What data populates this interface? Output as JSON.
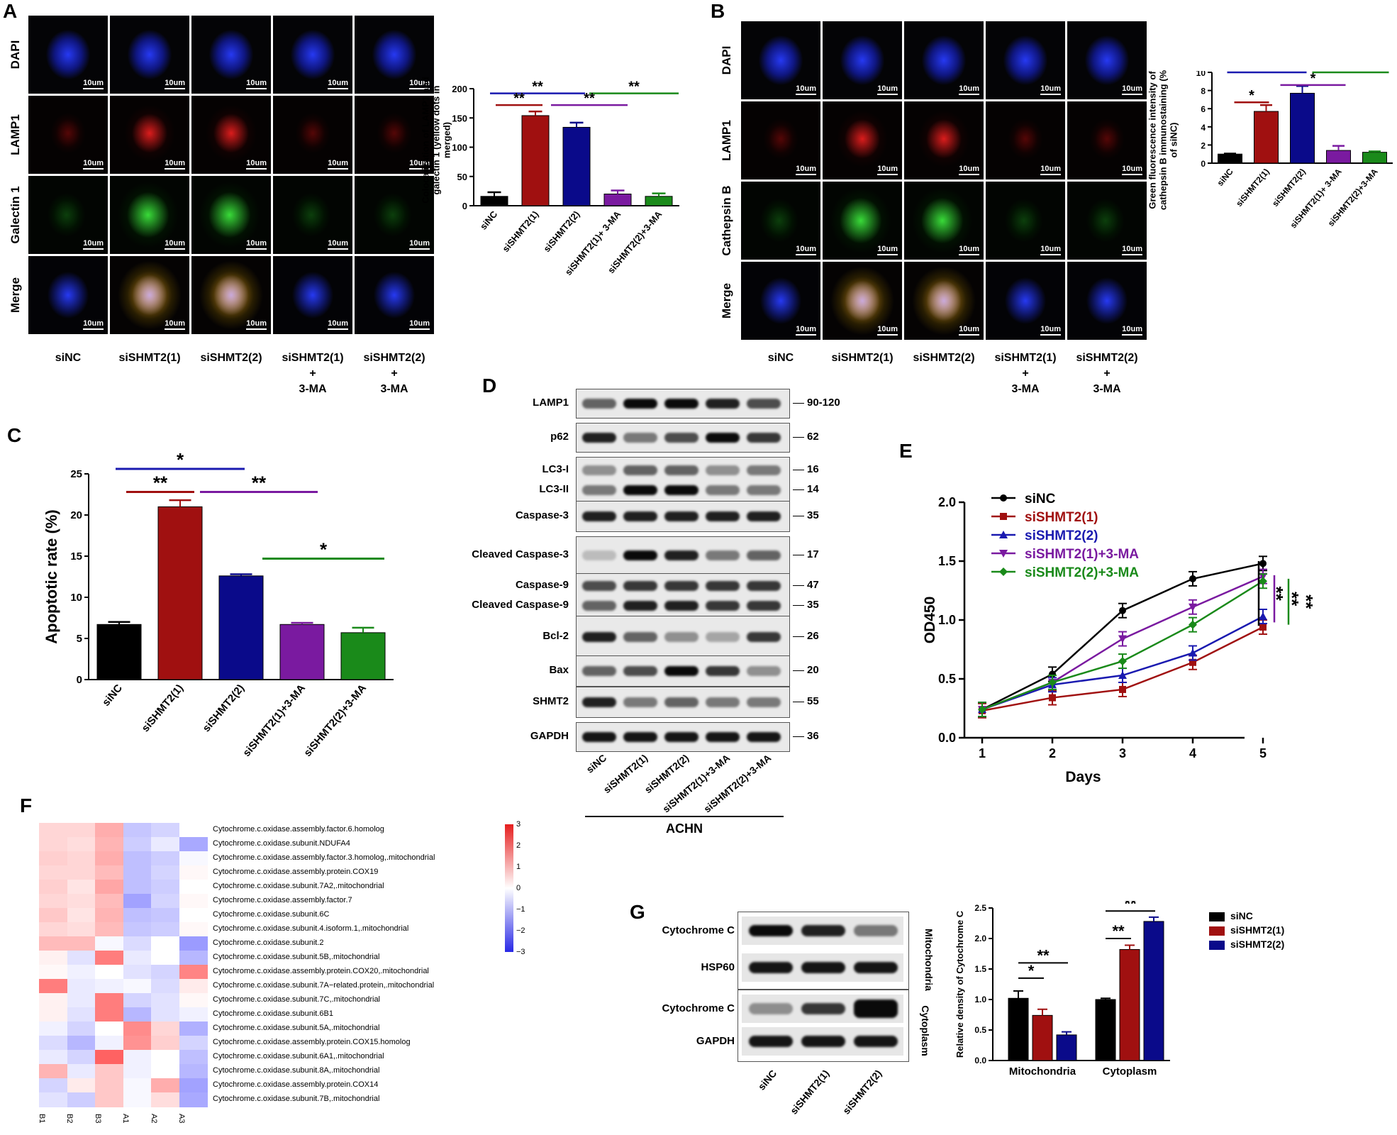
{
  "panels": {
    "A": "A",
    "B": "B",
    "C": "C",
    "D": "D",
    "E": "E",
    "F": "F",
    "G": "G"
  },
  "panelA": {
    "rows": [
      "DAPI",
      "LAMP1",
      "Galectin 1",
      "Merge"
    ],
    "cols": [
      "siNC",
      "siSHMT2(1)",
      "siSHMT2(2)",
      "siSHMT2(1)\n+\n3-MA",
      "siSHMT2(2)\n+\n3-MA"
    ],
    "scalebar": "10um",
    "chart": {
      "ylabel": "Colocalization of LAMP1 and galectin 1 (yellow dots in merged)",
      "categories": [
        "siNC",
        "siSHMT2(1)",
        "siSHMT2(2)",
        "siSHMT2(1)+ 3-MA",
        "siSHMT2(2)+3-MA"
      ],
      "values": [
        16,
        154,
        134,
        20,
        16
      ],
      "errors": [
        7,
        7,
        8,
        6,
        5
      ],
      "colors": [
        "#000000",
        "#a01010",
        "#0a0a8a",
        "#7a1aa0",
        "#1a8a1a"
      ],
      "yticks": [
        "0",
        "50",
        "100",
        "150",
        "200"
      ],
      "sig": [
        "**",
        "**",
        "**",
        "**"
      ]
    }
  },
  "panelB": {
    "rows": [
      "DAPI",
      "LAMP1",
      "Cathepsin B",
      "Merge"
    ],
    "cols": [
      "siNC",
      "siSHMT2(1)",
      "siSHMT2(2)",
      "siSHMT2(1)\n+\n3-MA",
      "siSHMT2(2)\n+\n3-MA"
    ],
    "scalebar": "10um",
    "chart": {
      "ylabel": "Green fluorescence intensity of cathepsin B immunostaining (% of siNC)",
      "categories": [
        "siNC",
        "siSHMT2(1)",
        "siSHMT2(2)",
        "siSHMT2(1)+ 3-MA",
        "siSHMT2(2)+3-MA"
      ],
      "values": [
        1.0,
        5.7,
        7.7,
        1.4,
        1.2
      ],
      "errors": [
        0.05,
        0.7,
        0.8,
        0.5,
        0.1
      ],
      "yticks": [
        "0",
        "2",
        "4",
        "6",
        "8",
        "10"
      ],
      "sig": [
        "**",
        "**",
        "*",
        "*"
      ]
    }
  },
  "chart_data": [
    {
      "type": "bar",
      "title": "",
      "ylabel": "Apoptotic rate (%)",
      "categories": [
        "siNC",
        "siSHMT2(1)",
        "siSHMT2(2)",
        "siSHMT2(1)+3-MA",
        "siSHMT2(2)+3-MA"
      ],
      "values": [
        6.7,
        21.0,
        12.6,
        6.7,
        5.7
      ],
      "errors": [
        0.3,
        0.8,
        0.2,
        0.2,
        0.6
      ],
      "ylim": [
        0,
        25
      ],
      "yticks": [
        "0",
        "5",
        "10",
        "15",
        "20",
        "25"
      ],
      "colors": [
        "#000000",
        "#a01010",
        "#0a0a8a",
        "#7a1aa0",
        "#1a8a1a"
      ],
      "sig": [
        "*",
        "**",
        "**",
        "*"
      ]
    },
    {
      "type": "line",
      "xlabel": "Days",
      "ylabel": "OD450",
      "x": [
        1,
        2,
        3,
        4,
        5
      ],
      "ylim": [
        0.0,
        2.0
      ],
      "yticks": [
        "0.0",
        "0.5",
        "1.0",
        "1.5",
        "2.0"
      ],
      "series": [
        {
          "name": "siNC",
          "values": [
            0.24,
            0.54,
            1.08,
            1.35,
            1.48
          ],
          "color": "#000000",
          "marker": "circle"
        },
        {
          "name": "siSHMT2(1)",
          "values": [
            0.23,
            0.34,
            0.41,
            0.64,
            0.94
          ],
          "color": "#a01010",
          "marker": "square"
        },
        {
          "name": "siSHMT2(2)",
          "values": [
            0.24,
            0.45,
            0.53,
            0.72,
            1.03
          ],
          "color": "#1a1ab0",
          "marker": "triangle"
        },
        {
          "name": "siSHMT2(1)+3-MA",
          "values": [
            0.24,
            0.47,
            0.84,
            1.11,
            1.37
          ],
          "color": "#7a1aa0",
          "marker": "triangle-down"
        },
        {
          "name": "siSHMT2(2)+3-MA",
          "values": [
            0.24,
            0.47,
            0.65,
            0.96,
            1.33
          ],
          "color": "#1a8a1a",
          "marker": "diamond"
        }
      ],
      "sig": [
        "**",
        "**",
        "**"
      ]
    },
    {
      "type": "bar",
      "ylabel": "Relative density of Cytochrome C",
      "categories": [
        "Mitochondria",
        "Cytoplasm"
      ],
      "series": [
        {
          "name": "siNC",
          "values": [
            1.02,
            1.0
          ],
          "errors": [
            0.12,
            0.02
          ],
          "color": "#000000"
        },
        {
          "name": "siSHMT2(1)",
          "values": [
            0.74,
            1.82
          ],
          "errors": [
            0.1,
            0.07
          ],
          "color": "#a01010"
        },
        {
          "name": "siSHMT2(2)",
          "values": [
            0.42,
            2.28
          ],
          "errors": [
            0.05,
            0.07
          ],
          "color": "#0a0a8a"
        }
      ],
      "ylim": [
        0,
        2.5
      ],
      "sig": [
        "*",
        "**",
        "**",
        "**"
      ]
    }
  ],
  "panelD": {
    "bands": [
      "LAMP1",
      "p62",
      "LC3-I",
      "LC3-II",
      "Caspase-3",
      "Cleaved Caspase-3",
      "Caspase-9",
      "Cleaved Caspase-9",
      "Bcl-2",
      "Bax",
      "SHMT2",
      "GAPDH"
    ],
    "kda": [
      "90-120",
      "62",
      "16",
      "14",
      "35",
      "17",
      "47",
      "35",
      "26",
      "20",
      "55",
      "36"
    ],
    "lanes": [
      "siNC",
      "siSHMT2(1)",
      "siSHMT2(2)",
      "siSHMT2(1)+3-MA",
      "siSHMT2(2)+3-MA"
    ],
    "cell_line": "ACHN"
  },
  "panelF": {
    "rows": [
      "Cytochrome.c.oxidase.assembly.factor.6.homolog",
      "Cytochrome.c.oxidase.subunit.NDUFA4",
      "Cytochrome.c.oxidase.assembly.factor.3.homolog,.mitochondrial",
      "Cytochrome.c.oxidase.assembly.protein.COX19",
      "Cytochrome.c.oxidase.subunit.7A2,.mitochondrial",
      "Cytochrome.c.oxidase.assembly.factor.7",
      "Cytochrome.c.oxidase.subunit.6C",
      "Cytochrome.c.oxidase.subunit.4.isoform.1,.mitochondrial",
      "Cytochrome.c.oxidase.subunit.2",
      "Cytochrome.c.oxidase.subunit.5B,.mitochondrial",
      "Cytochrome.c.oxidase.assembly.protein.COX20,.mitochondrial",
      "Cytochrome.c.oxidase.subunit.7A−related.protein,.mitochondrial",
      "Cytochrome.c.oxidase.subunit.7C,.mitochondrial",
      "Cytochrome.c.oxidase.subunit.6B1",
      "Cytochrome.c.oxidase.subunit.5A,.mitochondrial",
      "Cytochrome.c.oxidase.assembly.protein.COX15.homolog",
      "Cytochrome.c.oxidase.subunit.6A1,.mitochondrial",
      "Cytochrome.c.oxidase.subunit.8A,.mitochondrial",
      "Cytochrome.c.oxidase.assembly.protein.COX14",
      "Cytochrome.c.oxidase.subunit.7B,.mitochondrial"
    ],
    "cols": [
      "B1",
      "B2",
      "B3",
      "A1",
      "A2",
      "A3"
    ],
    "values": [
      [
        0.6,
        0.6,
        1.2,
        -0.8,
        -0.6,
        0.0
      ],
      [
        0.6,
        0.5,
        1.1,
        -0.7,
        -0.3,
        -1.2
      ],
      [
        0.7,
        0.6,
        1.2,
        -0.9,
        -0.7,
        -0.1
      ],
      [
        0.6,
        0.6,
        1.0,
        -0.9,
        -0.6,
        0.1
      ],
      [
        0.7,
        0.4,
        1.3,
        -0.9,
        -0.7,
        0.0
      ],
      [
        0.6,
        0.5,
        1.0,
        -1.3,
        -0.6,
        0.1
      ],
      [
        0.8,
        0.4,
        1.1,
        -0.9,
        -0.8,
        0.0
      ],
      [
        0.6,
        0.5,
        1.0,
        -0.8,
        -0.7,
        0.1
      ],
      [
        1.0,
        1.0,
        -0.1,
        -0.5,
        0.0,
        -1.4
      ],
      [
        0.2,
        -0.4,
        1.9,
        -0.3,
        0.0,
        -1.0
      ],
      [
        0.1,
        -0.2,
        0.0,
        -0.4,
        -0.6,
        1.8
      ],
      [
        1.9,
        -0.3,
        -0.2,
        -0.1,
        -0.5,
        0.3
      ],
      [
        0.2,
        -0.3,
        1.9,
        -0.6,
        -0.4,
        0.1
      ],
      [
        0.2,
        -0.4,
        1.9,
        -1.0,
        -0.4,
        -0.2
      ],
      [
        -0.2,
        -0.6,
        0.0,
        1.7,
        0.6,
        -1.1
      ],
      [
        -0.5,
        -1.0,
        -0.2,
        1.6,
        0.7,
        -0.6
      ],
      [
        -0.3,
        -0.6,
        2.3,
        -0.2,
        0.0,
        -0.9
      ],
      [
        1.1,
        -0.3,
        0.8,
        -0.2,
        0.0,
        -1.0
      ],
      [
        -0.6,
        0.3,
        0.8,
        -0.1,
        1.2,
        -1.3
      ],
      [
        -0.4,
        -0.7,
        0.8,
        -0.1,
        0.5,
        -1.2
      ]
    ],
    "legend_ticks": [
      "3",
      "2",
      "1",
      "0",
      "−1",
      "−2",
      "−3"
    ]
  },
  "panelG": {
    "bands": [
      "Cytochrome C",
      "HSP60",
      "Cytochrome C",
      "GAPDH"
    ],
    "fractions": [
      "Mitochondria",
      "Cytoplasm"
    ],
    "lanes": [
      "siNC",
      "siSHMT2(1)",
      "siSHMT2(2)"
    ],
    "yticks": [
      "0.0",
      "0.5",
      "1.0",
      "1.5",
      "2.0",
      "2.5"
    ]
  }
}
